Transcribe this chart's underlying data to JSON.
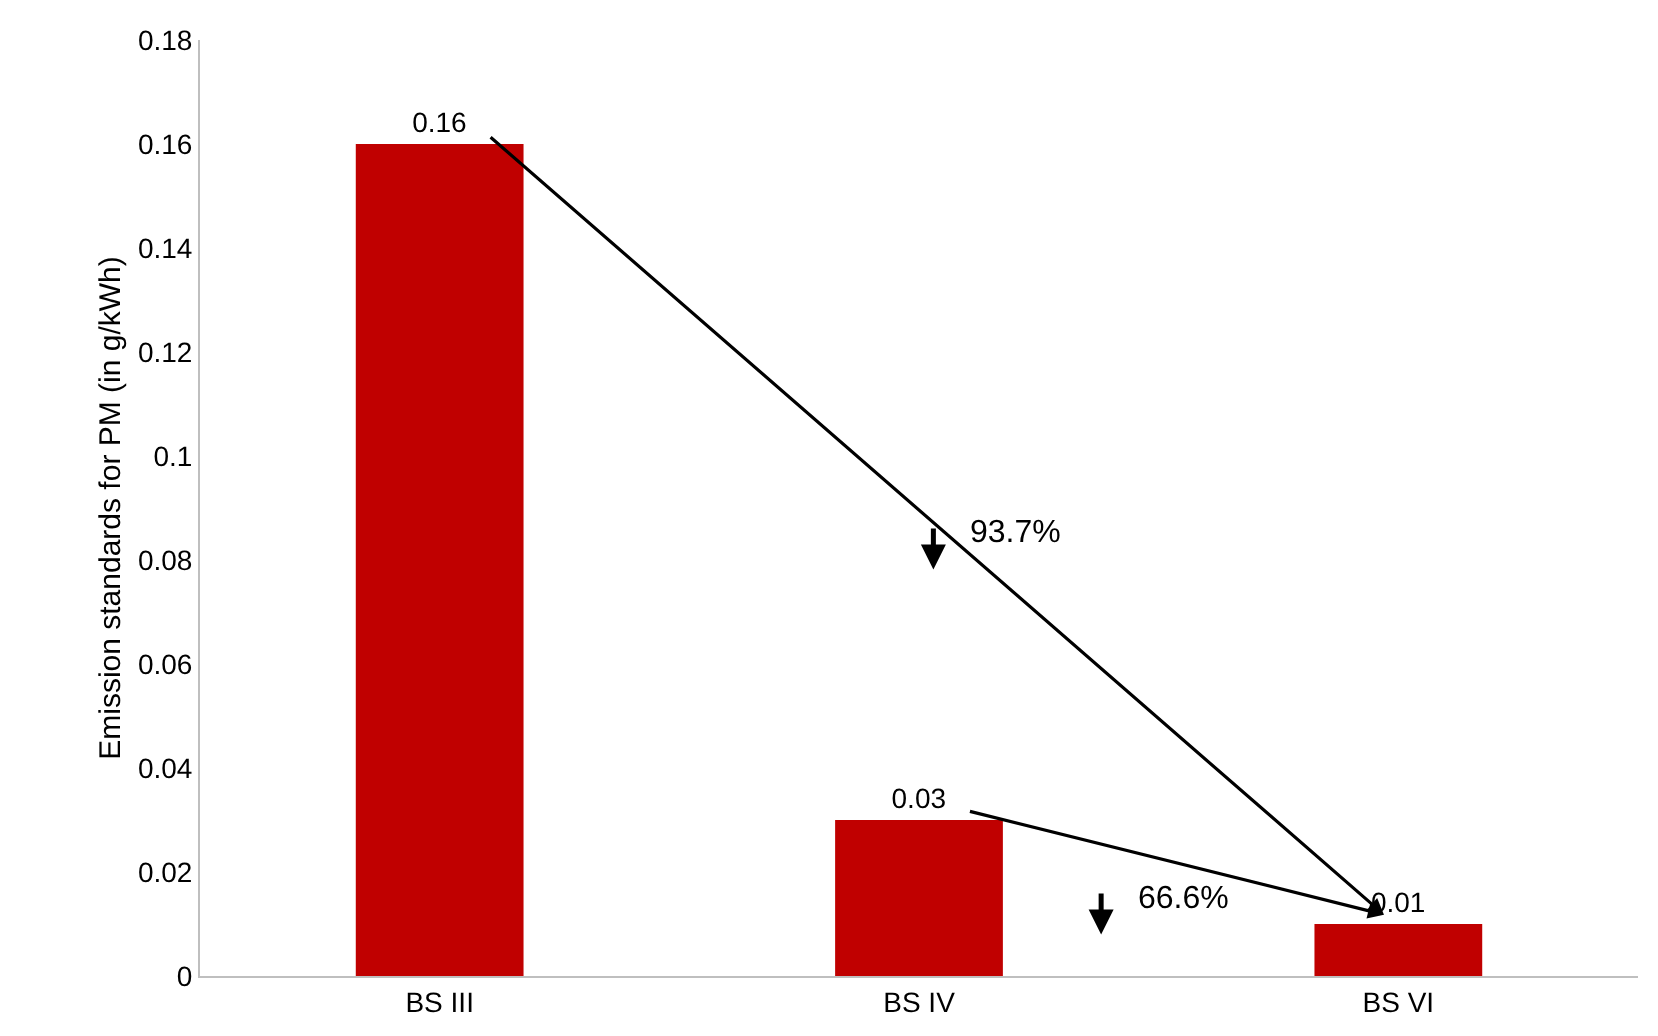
{
  "chart_data": {
    "type": "bar",
    "ylabel": "Emission standards for PM (in g/kWh)",
    "categories": [
      "BS III",
      "BS IV",
      "BS VI"
    ],
    "values": [
      0.16,
      0.03,
      0.01
    ],
    "color": "#c00000",
    "ylim": [
      0,
      0.18
    ],
    "yticks": [
      0,
      0.02,
      0.04,
      0.06,
      0.08,
      0.1,
      0.12,
      0.14,
      0.16,
      0.18
    ],
    "grid": false,
    "data_labels": true,
    "legend": false,
    "annotations": [
      "93.7%",
      "66.6%"
    ]
  }
}
